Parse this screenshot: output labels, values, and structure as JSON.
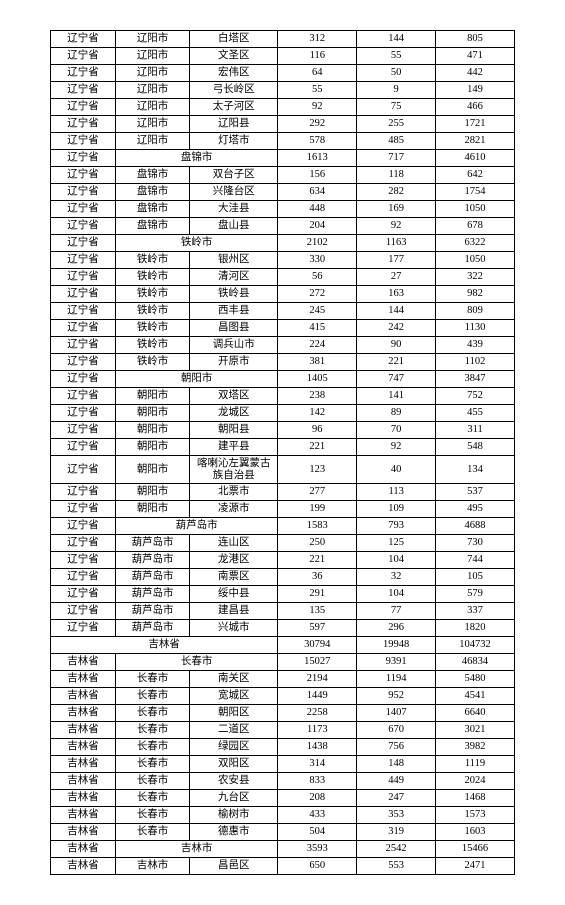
{
  "rows": [
    {
      "p": "辽宁省",
      "c": "辽阳市",
      "d": "白塔区",
      "v1": "312",
      "v2": "144",
      "v3": "805"
    },
    {
      "p": "辽宁省",
      "c": "辽阳市",
      "d": "文圣区",
      "v1": "116",
      "v2": "55",
      "v3": "471"
    },
    {
      "p": "辽宁省",
      "c": "辽阳市",
      "d": "宏伟区",
      "v1": "64",
      "v2": "50",
      "v3": "442"
    },
    {
      "p": "辽宁省",
      "c": "辽阳市",
      "d": "弓长岭区",
      "v1": "55",
      "v2": "9",
      "v3": "149"
    },
    {
      "p": "辽宁省",
      "c": "辽阳市",
      "d": "太子河区",
      "v1": "92",
      "v2": "75",
      "v3": "466"
    },
    {
      "p": "辽宁省",
      "c": "辽阳市",
      "d": "辽阳县",
      "v1": "292",
      "v2": "255",
      "v3": "1721"
    },
    {
      "p": "辽宁省",
      "c": "辽阳市",
      "d": "灯塔市",
      "v1": "578",
      "v2": "485",
      "v3": "2821"
    },
    {
      "p": "辽宁省",
      "c": "盘锦市",
      "d": "",
      "v1": "1613",
      "v2": "717",
      "v3": "4610",
      "span": true
    },
    {
      "p": "辽宁省",
      "c": "盘锦市",
      "d": "双台子区",
      "v1": "156",
      "v2": "118",
      "v3": "642"
    },
    {
      "p": "辽宁省",
      "c": "盘锦市",
      "d": "兴隆台区",
      "v1": "634",
      "v2": "282",
      "v3": "1754"
    },
    {
      "p": "辽宁省",
      "c": "盘锦市",
      "d": "大洼县",
      "v1": "448",
      "v2": "169",
      "v3": "1050"
    },
    {
      "p": "辽宁省",
      "c": "盘锦市",
      "d": "盘山县",
      "v1": "204",
      "v2": "92",
      "v3": "678"
    },
    {
      "p": "辽宁省",
      "c": "铁岭市",
      "d": "",
      "v1": "2102",
      "v2": "1163",
      "v3": "6322",
      "span": true
    },
    {
      "p": "辽宁省",
      "c": "铁岭市",
      "d": "银州区",
      "v1": "330",
      "v2": "177",
      "v3": "1050"
    },
    {
      "p": "辽宁省",
      "c": "铁岭市",
      "d": "清河区",
      "v1": "56",
      "v2": "27",
      "v3": "322"
    },
    {
      "p": "辽宁省",
      "c": "铁岭市",
      "d": "铁岭县",
      "v1": "272",
      "v2": "163",
      "v3": "982"
    },
    {
      "p": "辽宁省",
      "c": "铁岭市",
      "d": "西丰县",
      "v1": "245",
      "v2": "144",
      "v3": "809"
    },
    {
      "p": "辽宁省",
      "c": "铁岭市",
      "d": "昌图县",
      "v1": "415",
      "v2": "242",
      "v3": "1130"
    },
    {
      "p": "辽宁省",
      "c": "铁岭市",
      "d": "调兵山市",
      "v1": "224",
      "v2": "90",
      "v3": "439"
    },
    {
      "p": "辽宁省",
      "c": "铁岭市",
      "d": "开原市",
      "v1": "381",
      "v2": "221",
      "v3": "1102"
    },
    {
      "p": "辽宁省",
      "c": "朝阳市",
      "d": "",
      "v1": "1405",
      "v2": "747",
      "v3": "3847",
      "span": true
    },
    {
      "p": "辽宁省",
      "c": "朝阳市",
      "d": "双塔区",
      "v1": "238",
      "v2": "141",
      "v3": "752"
    },
    {
      "p": "辽宁省",
      "c": "朝阳市",
      "d": "龙城区",
      "v1": "142",
      "v2": "89",
      "v3": "455"
    },
    {
      "p": "辽宁省",
      "c": "朝阳市",
      "d": "朝阳县",
      "v1": "96",
      "v2": "70",
      "v3": "311"
    },
    {
      "p": "辽宁省",
      "c": "朝阳市",
      "d": "建平县",
      "v1": "221",
      "v2": "92",
      "v3": "548"
    },
    {
      "p": "辽宁省",
      "c": "朝阳市",
      "d": "喀喇沁左翼蒙古族自治县",
      "v1": "123",
      "v2": "40",
      "v3": "134",
      "wrap": true
    },
    {
      "p": "辽宁省",
      "c": "朝阳市",
      "d": "北票市",
      "v1": "277",
      "v2": "113",
      "v3": "537"
    },
    {
      "p": "辽宁省",
      "c": "朝阳市",
      "d": "凌源市",
      "v1": "199",
      "v2": "109",
      "v3": "495"
    },
    {
      "p": "辽宁省",
      "c": "葫芦岛市",
      "d": "",
      "v1": "1583",
      "v2": "793",
      "v3": "4688",
      "span": true
    },
    {
      "p": "辽宁省",
      "c": "葫芦岛市",
      "d": "连山区",
      "v1": "250",
      "v2": "125",
      "v3": "730"
    },
    {
      "p": "辽宁省",
      "c": "葫芦岛市",
      "d": "龙港区",
      "v1": "221",
      "v2": "104",
      "v3": "744"
    },
    {
      "p": "辽宁省",
      "c": "葫芦岛市",
      "d": "南票区",
      "v1": "36",
      "v2": "32",
      "v3": "105"
    },
    {
      "p": "辽宁省",
      "c": "葫芦岛市",
      "d": "绥中县",
      "v1": "291",
      "v2": "104",
      "v3": "579"
    },
    {
      "p": "辽宁省",
      "c": "葫芦岛市",
      "d": "建昌县",
      "v1": "135",
      "v2": "77",
      "v3": "337"
    },
    {
      "p": "辽宁省",
      "c": "葫芦岛市",
      "d": "兴城市",
      "v1": "597",
      "v2": "296",
      "v3": "1820"
    },
    {
      "p": "",
      "c": "吉林省",
      "d": "",
      "v1": "30794",
      "v2": "19948",
      "v3": "104732",
      "span3": true
    },
    {
      "p": "吉林省",
      "c": "长春市",
      "d": "",
      "v1": "15027",
      "v2": "9391",
      "v3": "46834",
      "span": true
    },
    {
      "p": "吉林省",
      "c": "长春市",
      "d": "南关区",
      "v1": "2194",
      "v2": "1194",
      "v3": "5480"
    },
    {
      "p": "吉林省",
      "c": "长春市",
      "d": "宽城区",
      "v1": "1449",
      "v2": "952",
      "v3": "4541"
    },
    {
      "p": "吉林省",
      "c": "长春市",
      "d": "朝阳区",
      "v1": "2258",
      "v2": "1407",
      "v3": "6640"
    },
    {
      "p": "吉林省",
      "c": "长春市",
      "d": "二道区",
      "v1": "1173",
      "v2": "670",
      "v3": "3021"
    },
    {
      "p": "吉林省",
      "c": "长春市",
      "d": "绿园区",
      "v1": "1438",
      "v2": "756",
      "v3": "3982"
    },
    {
      "p": "吉林省",
      "c": "长春市",
      "d": "双阳区",
      "v1": "314",
      "v2": "148",
      "v3": "1119"
    },
    {
      "p": "吉林省",
      "c": "长春市",
      "d": "农安县",
      "v1": "833",
      "v2": "449",
      "v3": "2024"
    },
    {
      "p": "吉林省",
      "c": "长春市",
      "d": "九台区",
      "v1": "208",
      "v2": "247",
      "v3": "1468"
    },
    {
      "p": "吉林省",
      "c": "长春市",
      "d": "榆树市",
      "v1": "433",
      "v2": "353",
      "v3": "1573"
    },
    {
      "p": "吉林省",
      "c": "长春市",
      "d": "德惠市",
      "v1": "504",
      "v2": "319",
      "v3": "1603"
    },
    {
      "p": "吉林省",
      "c": "吉林市",
      "d": "",
      "v1": "3593",
      "v2": "2542",
      "v3": "15466",
      "span": true
    },
    {
      "p": "吉林省",
      "c": "吉林市",
      "d": "昌邑区",
      "v1": "650",
      "v2": "553",
      "v3": "2471"
    }
  ]
}
